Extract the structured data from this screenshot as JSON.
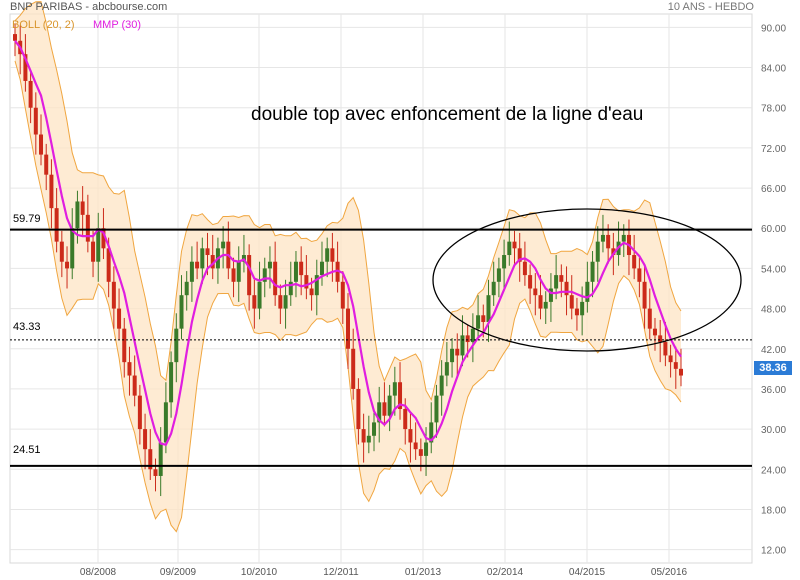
{
  "header": {
    "title": "BNP PARIBAS - abcbourse.com",
    "period": "10 ANS - HEBDO"
  },
  "legend": {
    "boll": "BOLL (20, 2)",
    "mmp": "MMP (30)"
  },
  "annotation": "double top avec enfoncement de la ligne d'eau",
  "colors": {
    "band_fill": "#fde4c4",
    "band_line": "#f0a640",
    "mmp": "#e01ee0",
    "candle_up": "#3a7a2a",
    "candle_down": "#cc2a1a",
    "badge": "#2b7bd6"
  },
  "chart_data": {
    "type": "candlestick",
    "title": "",
    "ylim": [
      10,
      92
    ],
    "y_ticks": [
      "90.00",
      "84.00",
      "78.00",
      "72.00",
      "66.00",
      "60.00",
      "54.00",
      "48.00",
      "42.00",
      "36.00",
      "30.00",
      "24.00",
      "18.00",
      "12.00"
    ],
    "x_ticks": [
      "08/2008",
      "09/2009",
      "10/2010",
      "12/2011",
      "01/2013",
      "02/2014",
      "04/2015",
      "05/2016"
    ],
    "grid": true,
    "horizontal_lines": [
      {
        "label": "59.79",
        "value": 59.79,
        "style": "solid"
      },
      {
        "label": "43.33",
        "value": 43.33,
        "style": "dotted"
      },
      {
        "label": "24.51",
        "value": 24.51,
        "style": "solid"
      }
    ],
    "last_price": "38.36",
    "close_series": [
      88,
      86,
      82,
      78,
      74,
      71,
      68,
      63,
      58,
      55,
      54,
      60,
      64,
      62,
      58,
      55,
      60,
      57,
      52,
      48,
      45,
      40,
      38,
      35,
      30,
      27,
      24,
      23,
      28,
      34,
      40,
      45,
      50,
      52,
      55,
      54,
      57,
      56,
      54,
      57,
      58,
      54,
      52,
      55,
      56,
      50,
      48,
      52,
      54,
      55,
      50,
      48,
      50,
      52,
      55,
      53,
      51,
      50,
      53,
      55,
      57,
      55,
      52,
      48,
      42,
      36,
      30,
      28,
      29,
      31,
      34,
      32,
      35,
      37,
      33,
      30,
      28,
      27,
      26,
      28,
      31,
      35,
      38,
      40,
      42,
      41,
      44,
      43,
      45,
      47,
      46,
      50,
      52,
      54,
      56,
      58,
      57,
      55,
      53,
      51,
      50,
      48,
      49,
      51,
      53,
      52,
      50,
      48,
      47,
      49,
      52,
      55,
      58,
      59,
      57,
      56,
      58,
      59,
      56,
      54,
      52,
      48,
      45,
      44,
      43,
      41,
      40,
      39,
      38
    ]
  }
}
